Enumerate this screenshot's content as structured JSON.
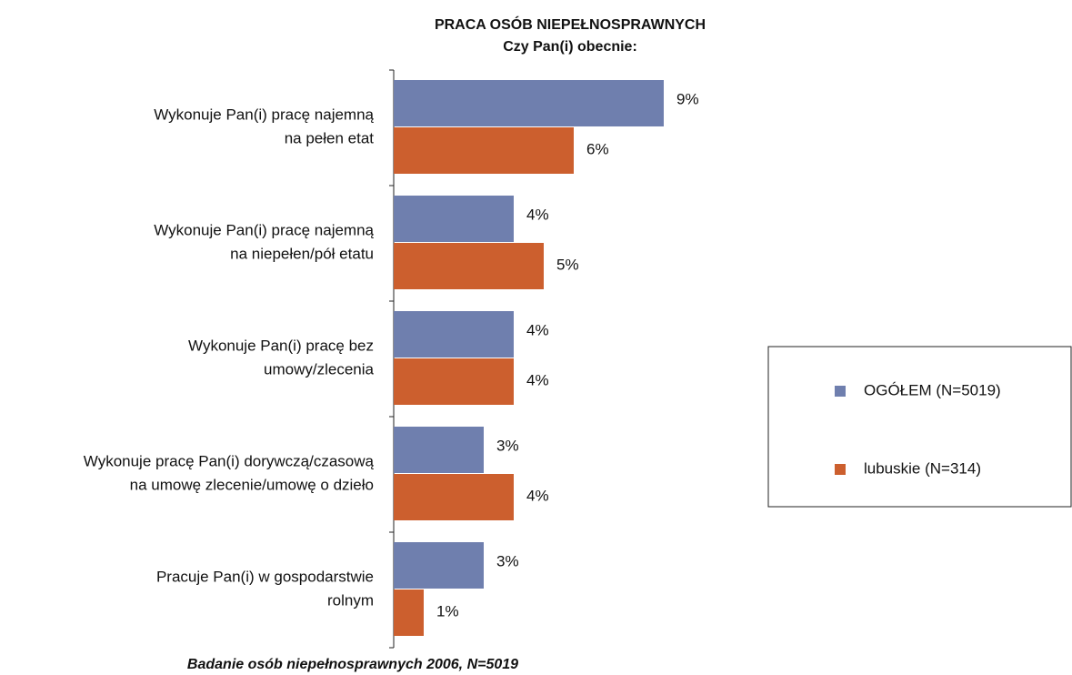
{
  "chart_data": {
    "type": "bar",
    "orientation": "horizontal",
    "title": "PRACA OSÓB NIEPEŁNOSPRAWNYCH",
    "subtitle": "Czy Pan(i) obecnie:",
    "footnote": "Badanie osób niepełnosprawnych 2006, N=5019",
    "categories": [
      [
        "Wykonuje Pan(i) pracę najemną",
        "na pełen etat"
      ],
      [
        "Wykonuje Pan(i) pracę najemną",
        "na niepełen/pół etatu"
      ],
      [
        "Wykonuje Pan(i) pracę bez",
        "umowy/zlecenia"
      ],
      [
        "Wykonuje pracę Pan(i) dorywczą/czasową",
        "na umowę zlecenie/umowę o dzieło"
      ],
      [
        "Pracuje Pan(i) w gospodarstwie",
        "rolnym"
      ]
    ],
    "series": [
      {
        "name": "OGÓŁEM (N=5019)",
        "color": "#6f7fae",
        "values": [
          9,
          4,
          4,
          3,
          3
        ],
        "value_labels": [
          "9%",
          "4%",
          "4%",
          "3%",
          "3%"
        ]
      },
      {
        "name": "lubuskie (N=314)",
        "color": "#cc5f2e",
        "values": [
          6,
          5,
          4,
          4,
          1
        ],
        "value_labels": [
          "6%",
          "5%",
          "4%",
          "4%",
          "1%"
        ]
      }
    ],
    "xlim": [
      0,
      10
    ],
    "legend": "right"
  }
}
